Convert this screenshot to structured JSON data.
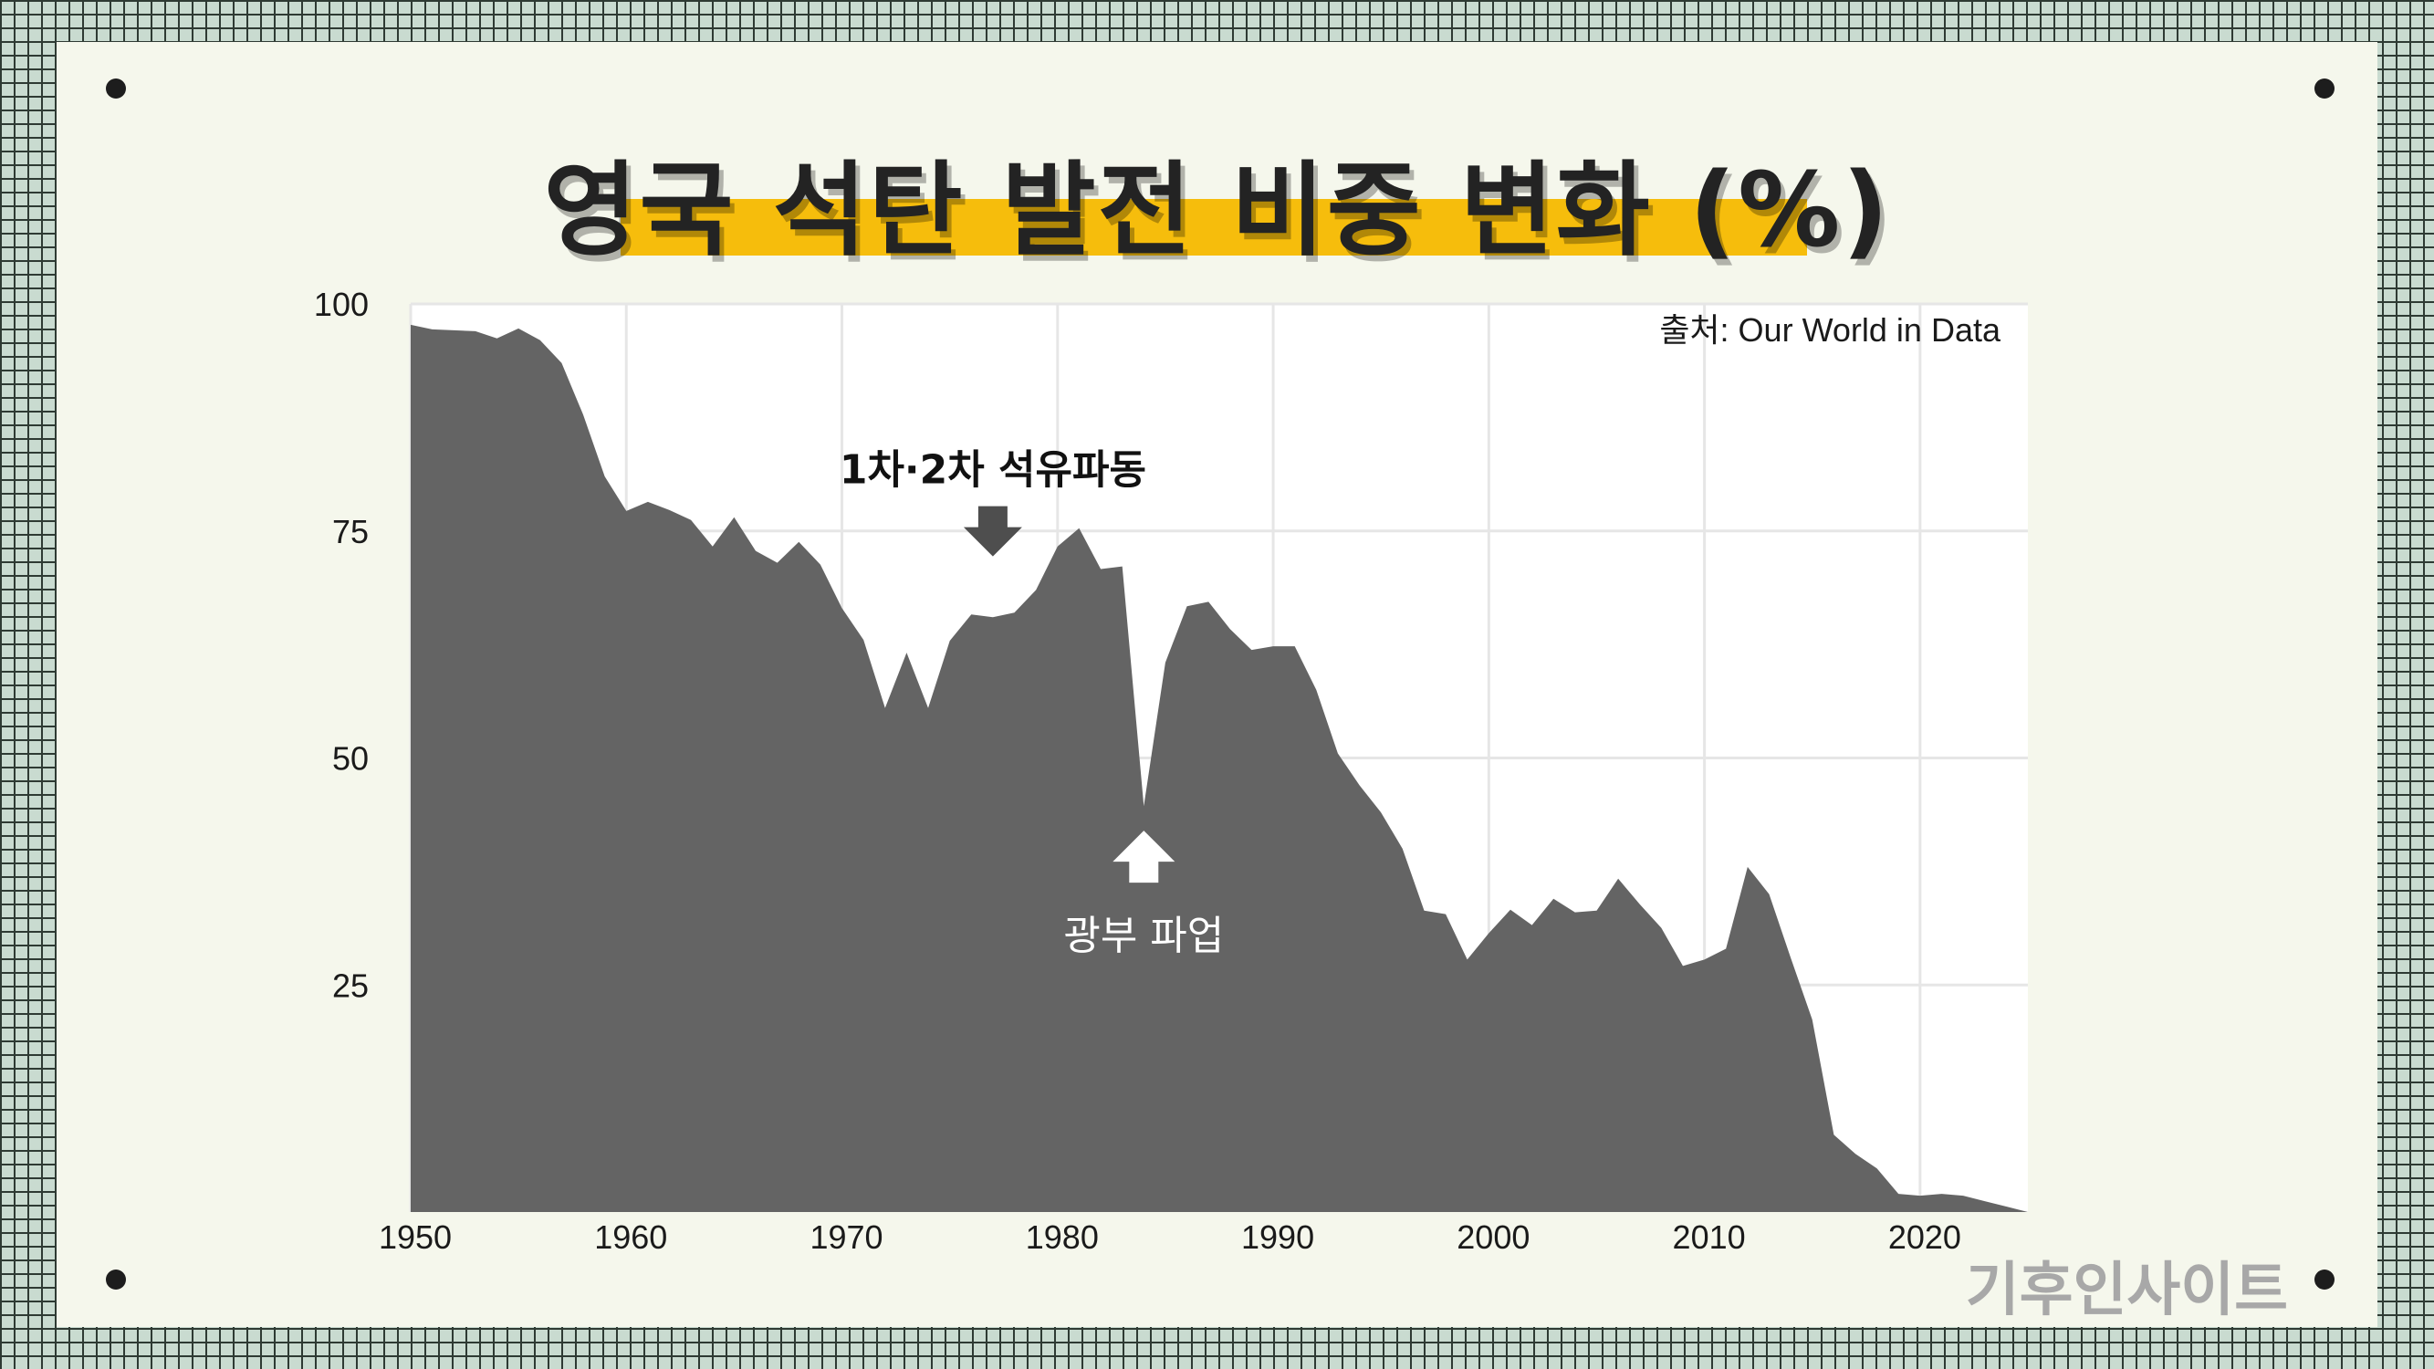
{
  "title": "영국 석탄 발전 비중 변화 (%)",
  "brand": "기후인사이트",
  "chart_data": {
    "type": "area",
    "source": "출처: Our World in Data",
    "xlim": [
      1950,
      2025
    ],
    "ylim": [
      0,
      100
    ],
    "x_ticks": [
      1950,
      1960,
      1970,
      1980,
      1990,
      2000,
      2010,
      2020
    ],
    "y_ticks": [
      25,
      50,
      75,
      100
    ],
    "grid": true,
    "area_color": "#646464",
    "x": [
      1950,
      1951,
      1952,
      1953,
      1954,
      1955,
      1956,
      1957,
      1958,
      1959,
      1960,
      1961,
      1962,
      1963,
      1964,
      1965,
      1966,
      1967,
      1968,
      1969,
      1970,
      1971,
      1972,
      1973,
      1974,
      1975,
      1976,
      1977,
      1978,
      1979,
      1980,
      1981,
      1982,
      1983,
      1984,
      1985,
      1986,
      1987,
      1988,
      1989,
      1990,
      1991,
      1992,
      1993,
      1994,
      1995,
      1996,
      1997,
      1998,
      1999,
      2000,
      2001,
      2002,
      2003,
      2004,
      2005,
      2006,
      2007,
      2008,
      2009,
      2010,
      2011,
      2012,
      2013,
      2014,
      2015,
      2016,
      2017,
      2018,
      2019,
      2020,
      2021,
      2022,
      2023,
      2024,
      2025
    ],
    "values": [
      97.7,
      97.2,
      97.1,
      97.0,
      96.2,
      97.3,
      96.0,
      93.5,
      87.8,
      81.0,
      77.2,
      78.2,
      77.3,
      76.2,
      73.3,
      76.5,
      72.8,
      71.5,
      73.8,
      71.3,
      66.5,
      63.0,
      55.5,
      61.6,
      55.5,
      62.9,
      65.8,
      65.5,
      66.0,
      68.5,
      73.3,
      75.3,
      70.8,
      71.1,
      44.7,
      60.5,
      66.7,
      67.2,
      64.2,
      61.9,
      62.3,
      62.3,
      57.5,
      50.5,
      47.0,
      44.0,
      40.0,
      33.2,
      32.8,
      27.8,
      30.7,
      33.3,
      31.6,
      34.5,
      33.0,
      33.2,
      36.7,
      33.9,
      31.3,
      27.1,
      27.8,
      29.0,
      38.0,
      35.0,
      28.0,
      21.2,
      8.5,
      6.4,
      4.8,
      2.0,
      1.8,
      2.0,
      1.8,
      1.2,
      0.6,
      0.0
    ],
    "annotations": [
      {
        "text": "1차·2차 석유파동",
        "x": 1977,
        "y": 72.2,
        "arrow": "down"
      },
      {
        "text": "광부 파업",
        "x": 1984,
        "y": 42.0,
        "arrow": "up"
      }
    ]
  }
}
